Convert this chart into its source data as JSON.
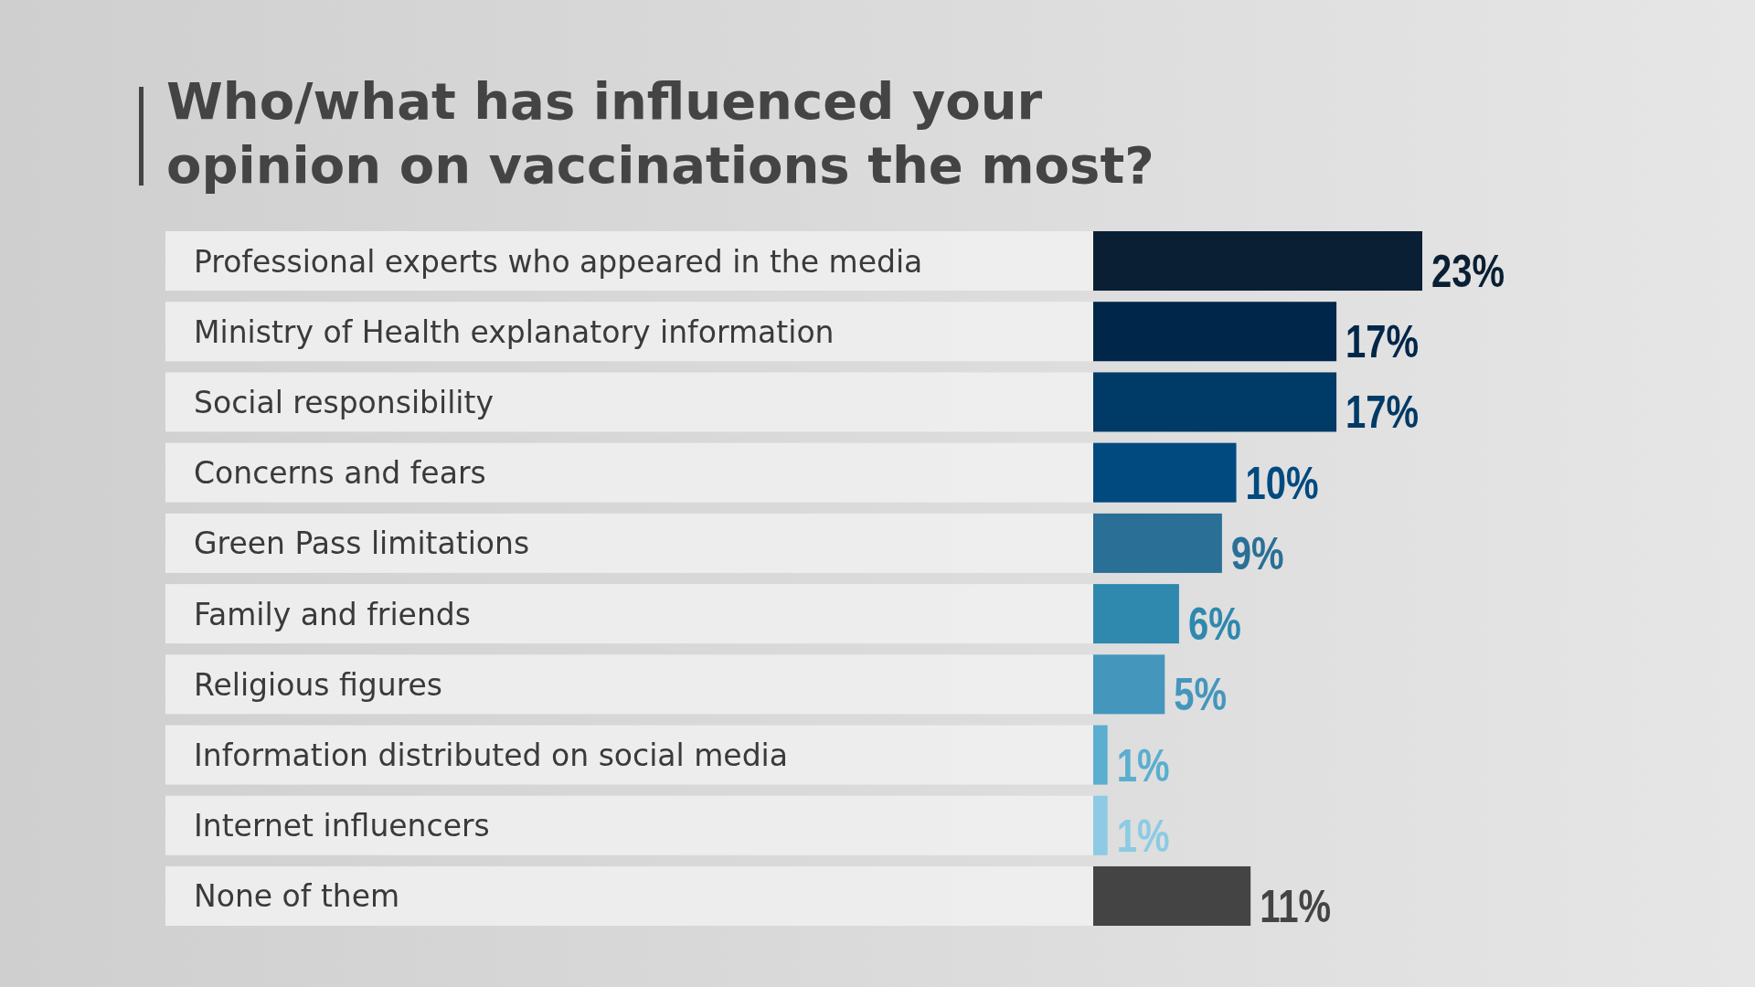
{
  "chart_data": {
    "type": "bar",
    "orientation": "horizontal",
    "title": "Who/what has influenced your\nopinion on vaccinations the most?",
    "categories": [
      "Professional experts who appeared in the media",
      "Ministry of Health explanatory information",
      "Social responsibility",
      "Concerns and fears",
      "Green Pass limitations",
      "Family and friends",
      "Religious figures",
      "Information distributed on social media",
      "Internet influencers",
      "None of them"
    ],
    "values": [
      23,
      17,
      17,
      10,
      9,
      6,
      5,
      1,
      1,
      11
    ],
    "colors": [
      "#0a1f33",
      "#00264a",
      "#003a66",
      "#004a80",
      "#2a6f96",
      "#2f88ae",
      "#4496bd",
      "#5aaed0",
      "#8ccbe3",
      "#444444"
    ],
    "value_labels": [
      "23%",
      "17%",
      "17%",
      "10%",
      "9%",
      "6%",
      "5%",
      "1%",
      "1%",
      "11%"
    ]
  }
}
